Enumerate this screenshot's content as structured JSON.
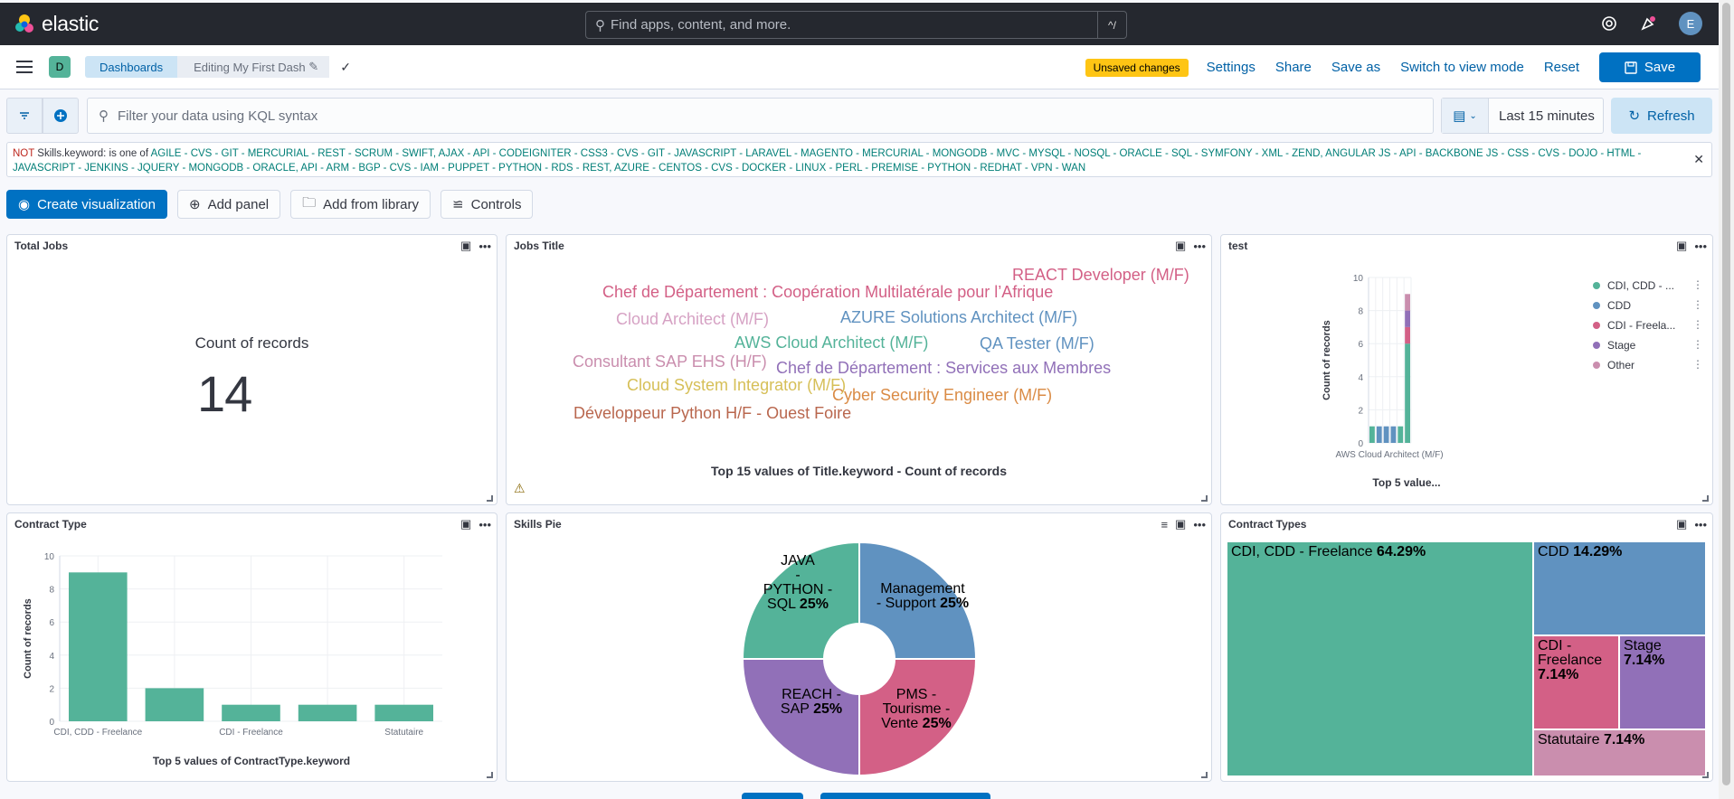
{
  "topbar": {
    "logo": "elastic",
    "search_placeholder": "Find apps, content, and more.",
    "search_shortcut": "^/",
    "user_initial": "E"
  },
  "header": {
    "space_initial": "D",
    "breadcrumbs": [
      "Dashboards",
      "Editing My First Dash"
    ],
    "unsaved": "Unsaved changes",
    "links": [
      "Settings",
      "Share",
      "Save as",
      "Switch to view mode",
      "Reset"
    ],
    "save_label": "Save"
  },
  "query": {
    "placeholder": "Filter your data using KQL syntax",
    "time_range": "Last 15 minutes",
    "refresh_label": "Refresh"
  },
  "filter": {
    "not_label": "NOT",
    "field": "Skills.keyword:",
    "operator": "is one of",
    "values": "AGILE - CVS - GIT - MERCURIAL - REST - SCRUM - SWIFT, AJAX - API - CODEIGNITER - CSS3 - CVS - GIT - JAVASCRIPT - LARAVEL - MAGENTO - MERCURIAL - MONGODB - MVC - MYSQL - NOSQL - ORACLE - SQL - SYMFONY - XML - ZEND, ANGULAR JS - API - BACKBONE JS - CSS - CVS - DOJO - HTML - JAVASCRIPT - JENKINS - JQUERY - MONGODB - ORACLE, API - ARM - BGP - CVS - IAM - PUPPET - PYTHON - RDS - REST, AZURE - CENTOS - CVS - DOCKER - LINUX - PERL - PREMISE - PYTHON - REDHAT - VPN - WAN"
  },
  "toolbar": {
    "create": "Create visualization",
    "add_panel": "Add panel",
    "add_library": "Add from library",
    "controls": "Controls"
  },
  "panels": {
    "total_jobs": {
      "title": "Total Jobs",
      "label": "Count of records",
      "value": "14"
    },
    "jobs_title": {
      "title": "Jobs Title",
      "caption": "Top 15 values of Title.keyword - Count of records",
      "words": [
        {
          "text": "REACT Developer (M/F)",
          "color": "#d36086"
        },
        {
          "text": "Chef de Département : Coopération Multilatérale pour l’Afrique",
          "color": "#d36086"
        },
        {
          "text": "Cloud Architect (M/F)",
          "color": "#d6a2c4"
        },
        {
          "text": "AZURE Solutions Architect (M/F)",
          "color": "#6092c0"
        },
        {
          "text": "AWS Cloud Architect (M/F)",
          "color": "#54b399"
        },
        {
          "text": "QA Tester (M/F)",
          "color": "#6092c0"
        },
        {
          "text": "Consultant SAP EHS (H/F)",
          "color": "#ca8eae"
        },
        {
          "text": "Chef de Département : Services aux Membres",
          "color": "#9170b8"
        },
        {
          "text": "Cloud System Integrator (M/F)",
          "color": "#d6bf57"
        },
        {
          "text": "Cyber Security Engineer (M/F)",
          "color": "#da8b45"
        },
        {
          "text": "Développeur Python H/F - Ouest Foire",
          "color": "#b9a888"
        }
      ]
    },
    "test": {
      "title": "test",
      "caption": "Top 5 value...",
      "xlabel": "AWS Cloud Architect (M/F)",
      "ylabel": "Count of records",
      "legend": [
        {
          "name": "CDI, CDD - ...",
          "color": "#54b399"
        },
        {
          "name": "CDD",
          "color": "#6092c0"
        },
        {
          "name": "CDI - Freela...",
          "color": "#d36086"
        },
        {
          "name": "Stage",
          "color": "#9170b8"
        },
        {
          "name": "Other",
          "color": "#ca8eae"
        }
      ]
    },
    "contract_type": {
      "title": "Contract Type",
      "caption": "Top 5 values of ContractType.keyword",
      "ylabel": "Count of records"
    },
    "skills_pie": {
      "title": "Skills Pie"
    },
    "contract_types": {
      "title": "Contract Types",
      "cells": [
        {
          "name": "CDI, CDD - Freelance",
          "pct": "64.29%",
          "color": "#54b399"
        },
        {
          "name": "CDD",
          "pct": "14.29%",
          "color": "#6092c0"
        },
        {
          "name": "CDI - Freelance",
          "pct": "7.14%",
          "color": "#d36086"
        },
        {
          "name": "Stage",
          "pct": "7.14%",
          "color": "#9170b8"
        },
        {
          "name": "Statutaire",
          "pct": "7.14%",
          "color": "#ca8eae"
        }
      ]
    }
  },
  "chart_data": [
    {
      "type": "bar",
      "title": "Top 5 values of ContractType.keyword",
      "ylabel": "Count of records",
      "categories": [
        "CDI, CDD - Freelance",
        "",
        "CDI - Freelance",
        "",
        "Statutaire"
      ],
      "values": [
        9,
        2,
        1,
        1,
        1
      ],
      "ylim": [
        0,
        10
      ],
      "yticks": [
        0,
        2,
        4,
        6,
        8,
        10
      ],
      "color": "#54b399"
    },
    {
      "type": "bar",
      "title": "Top 5 value...",
      "ylabel": "Count of records",
      "xlabel": "AWS Cloud Architect (M/F)",
      "ylim": [
        0,
        10
      ],
      "yticks": [
        0,
        2,
        4,
        6,
        8,
        10
      ],
      "bars": [
        {
          "color": "#54b399",
          "segments": [
            1
          ]
        },
        {
          "color": "#6092c0",
          "segments": [
            1
          ]
        },
        {
          "color": "#6092c0",
          "segments": [
            1
          ]
        },
        {
          "color": "#6092c0",
          "segments": [
            1
          ]
        },
        {
          "color": "#54b399",
          "segments": [
            1
          ]
        },
        {
          "stack": [
            {
              "value": 6,
              "color": "#54b399"
            },
            {
              "value": 1,
              "color": "#d36086"
            },
            {
              "value": 1,
              "color": "#9170b8"
            },
            {
              "value": 1,
              "color": "#ca8eae"
            }
          ]
        }
      ]
    },
    {
      "type": "pie",
      "title": "",
      "slices": [
        {
          "label": "Management - Support",
          "pct": "25%",
          "value": 25,
          "color": "#6092c0"
        },
        {
          "label": "PMS - Tourisme - Vente",
          "pct": "25%",
          "value": 25,
          "color": "#d36086"
        },
        {
          "label": "REACH - SAP",
          "pct": "25%",
          "value": 25,
          "color": "#9170b8"
        },
        {
          "label": "JAVA - PYTHON - SQL",
          "pct": "25%",
          "value": 25,
          "color": "#54b399"
        }
      ]
    }
  ]
}
